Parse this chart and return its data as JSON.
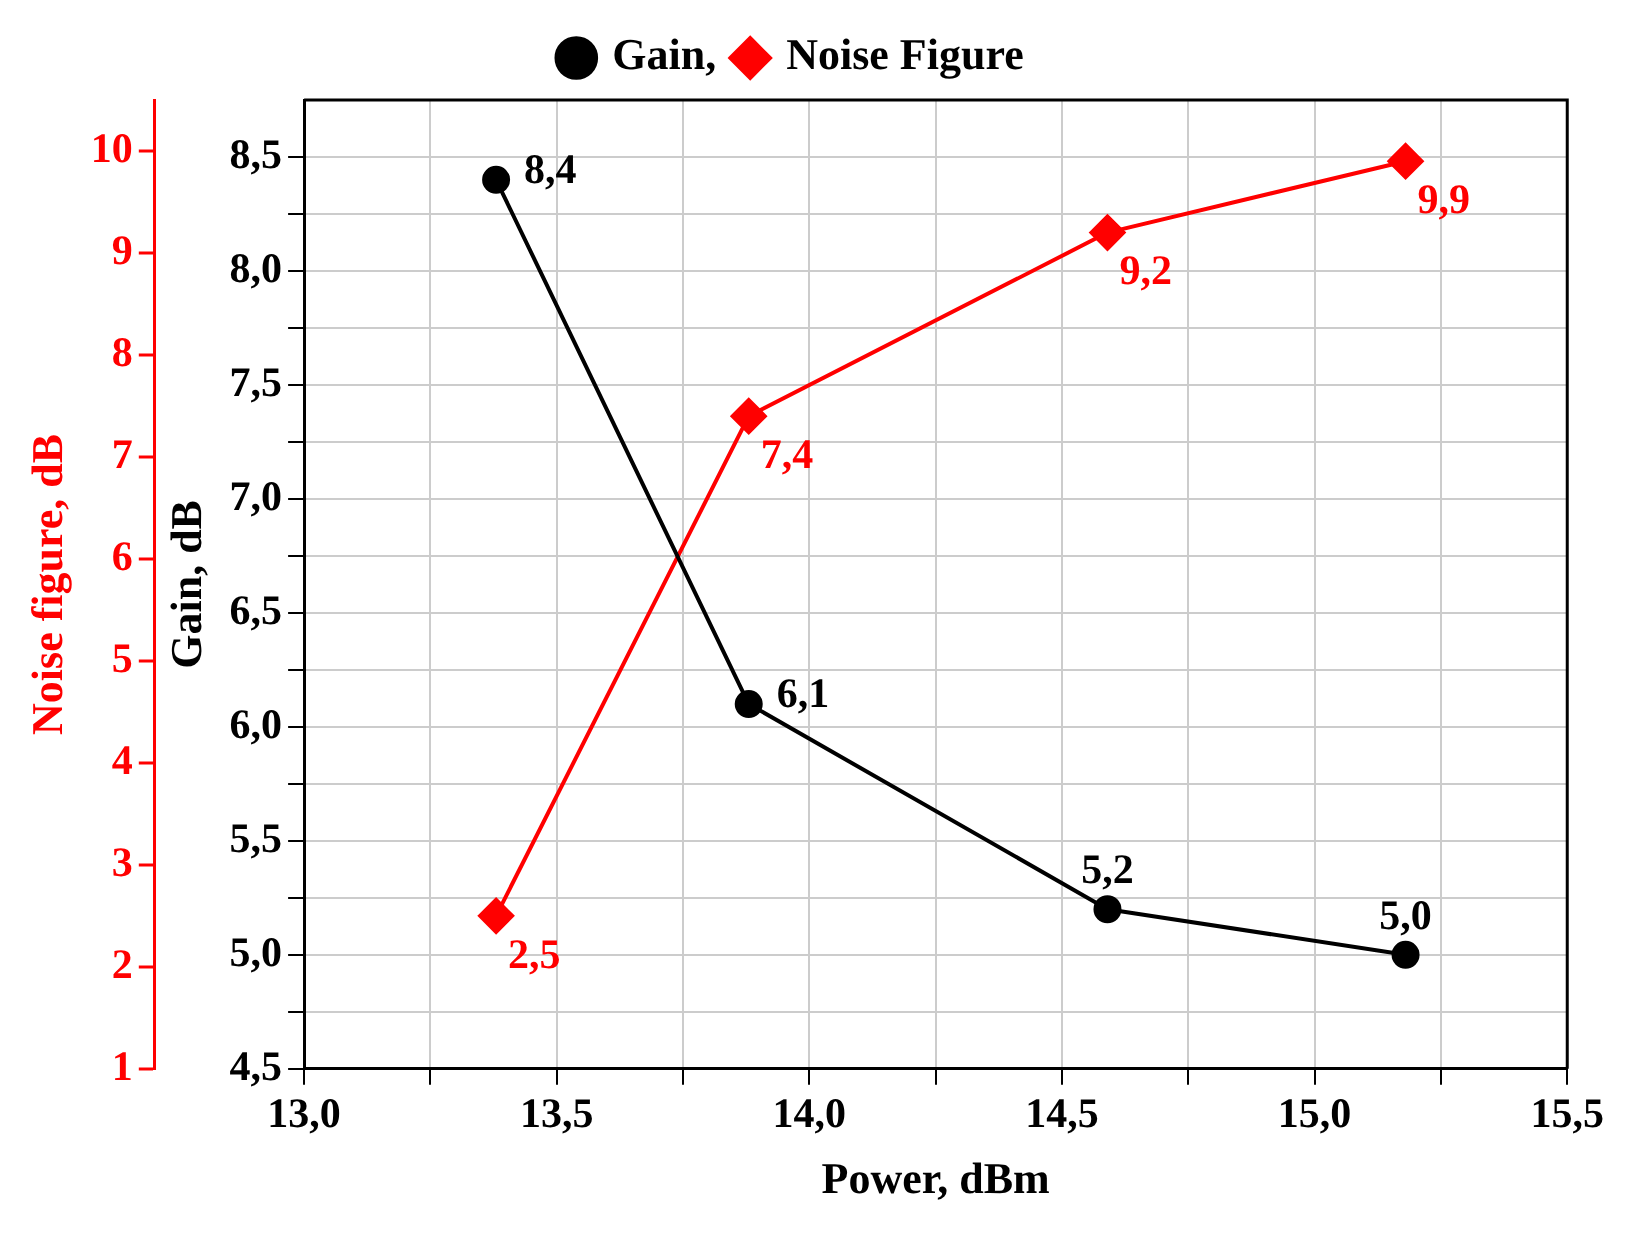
{
  "chart_data": {
    "type": "line",
    "xlabel": "Power, dBm",
    "ylabel": "Gain, dB",
    "y2label": "Noise figure, dB",
    "x": [
      13.38,
      13.88,
      14.59,
      15.18
    ],
    "series": [
      {
        "name": "Gain,",
        "color": "#000000",
        "marker": "circle",
        "values": [
          8.4,
          6.1,
          5.2,
          5.0
        ],
        "value_labels": [
          "8,4",
          "6,1",
          "5,2",
          "5,0"
        ]
      },
      {
        "name": "Noise Figure",
        "color": "#ff0000",
        "marker": "diamond",
        "axis": "y2",
        "values": [
          2.5,
          7.4,
          9.2,
          9.9
        ],
        "value_labels": [
          "2,5",
          "7,4",
          "9,2",
          "9,9"
        ]
      }
    ],
    "legend": "top",
    "grid": true,
    "line_style": "solid",
    "xlim": [
      13.0,
      15.5
    ],
    "xticks": [
      {
        "value": 13,
        "label": "13,0"
      },
      {
        "value": 13.25,
        "label": null
      },
      {
        "value": 13.5,
        "label": "13,5"
      },
      {
        "value": 13.75,
        "label": null
      },
      {
        "value": 14,
        "label": "14,0"
      },
      {
        "value": 14.25,
        "label": null
      },
      {
        "value": 14.5,
        "label": "14,5"
      },
      {
        "value": 14.75,
        "label": null
      },
      {
        "value": 15,
        "label": "15,0"
      },
      {
        "value": 15.25,
        "label": null
      },
      {
        "value": 15.5,
        "label": "15,5"
      }
    ],
    "ylim": [
      4.5,
      8.75
    ],
    "yticks": [
      {
        "value": 4.5,
        "label": "4,5"
      },
      {
        "value": 4.75,
        "label": null
      },
      {
        "value": 5,
        "label": "5,0"
      },
      {
        "value": 5.25,
        "label": null
      },
      {
        "value": 5.5,
        "label": "5,5"
      },
      {
        "value": 5.75,
        "label": null
      },
      {
        "value": 6,
        "label": "6,0"
      },
      {
        "value": 6.25,
        "label": null
      },
      {
        "value": 6.5,
        "label": "6,5"
      },
      {
        "value": 6.75,
        "label": null
      },
      {
        "value": 7,
        "label": "7,0"
      },
      {
        "value": 7.25,
        "label": null
      },
      {
        "value": 7.5,
        "label": "7,5"
      },
      {
        "value": 7.75,
        "label": null
      },
      {
        "value": 8,
        "label": "8,0"
      },
      {
        "value": 8.25,
        "label": null
      },
      {
        "value": 8.5,
        "label": "8,5"
      }
    ],
    "y2lim": [
      1,
      10.5
    ],
    "y2ticks": [
      1,
      2,
      3,
      4,
      5,
      6,
      7,
      8,
      9,
      10
    ]
  }
}
